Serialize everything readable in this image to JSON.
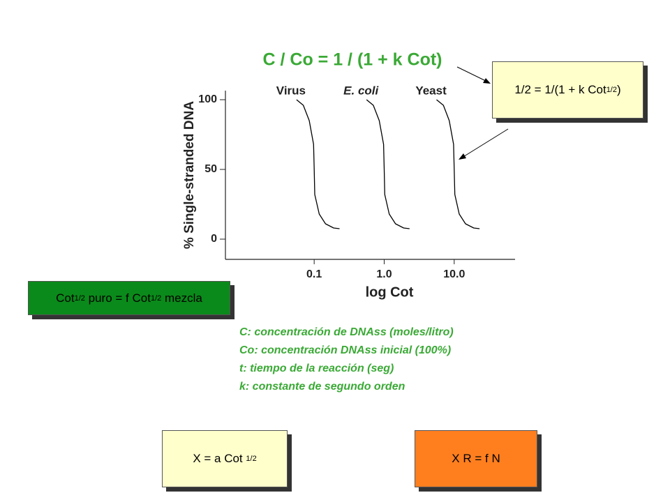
{
  "chart_data": {
    "type": "line",
    "title": "C  / Co = 1 / (1 + k Cot)",
    "y_label": "% Single-stranded DNA",
    "x_label": "log Cot",
    "log_x": true,
    "xlim": [
      0.0054,
      74
    ],
    "xticks": [
      0.1,
      {
        "value": 1,
        "label": "1.0"
      },
      {
        "value": 10,
        "label": "10.0"
      }
    ],
    "ylim": [
      -14.5,
      106.5
    ],
    "yticks": [
      0,
      50,
      100
    ],
    "series": [
      {
        "name": "Virus",
        "color": "#000000",
        "x": [
          0.056,
          0.07,
          0.085,
          0.098,
          0.1,
          0.102,
          0.118,
          0.145,
          0.19,
          0.23
        ],
        "values": [
          100,
          96,
          85,
          68,
          50,
          32,
          18,
          11,
          8,
          7.5
        ]
      },
      {
        "name": "E. coli",
        "color": "#000000",
        "x": [
          0.56,
          0.7,
          0.85,
          0.98,
          1,
          1.02,
          1.18,
          1.45,
          1.9,
          2.3
        ],
        "values": [
          100,
          96,
          85,
          68,
          50,
          32,
          18,
          11,
          8,
          7.5
        ]
      },
      {
        "name": "Yeast",
        "color": "#000000",
        "x": [
          5.6,
          7,
          8.5,
          9.8,
          10,
          10.2,
          11.8,
          14.5,
          19,
          23
        ],
        "values": [
          100,
          96,
          85,
          68,
          50,
          32,
          18,
          11,
          8,
          7.5
        ]
      }
    ]
  },
  "notes": [
    "C: concentración de DNAss (moles/litro)",
    "Co: concentración DNAss inicial (100%)",
    "t: tiempo de la reacción (seg)",
    "k: constante de segundo orden"
  ],
  "boxes": [
    {
      "parts": [
        {
          "t": "1/2 = 1/(1 + k Cot",
          "sub": false
        },
        {
          "t": "1/2",
          "sub": true
        },
        {
          "t": ")",
          "sub": false
        }
      ]
    },
    {
      "parts": [
        {
          "t": "Cot",
          "sub": false
        },
        {
          "t": "1/2",
          "sub": true
        },
        {
          "t": " puro = f Cot",
          "sub": false
        },
        {
          "t": "1/2",
          "sub": true
        },
        {
          "t": " mezcla",
          "sub": false
        }
      ]
    },
    {
      "parts": [
        {
          "t": "X = a Cot ",
          "sub": false
        },
        {
          "t": "1/2",
          "sub": true
        }
      ]
    },
    {
      "parts": [
        {
          "t": "X R = f N",
          "sub": false
        }
      ]
    }
  ]
}
